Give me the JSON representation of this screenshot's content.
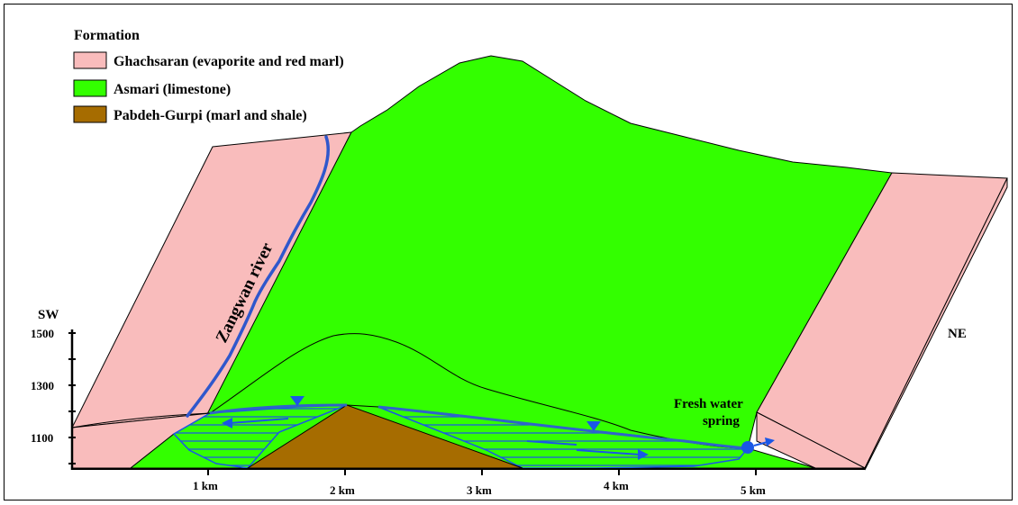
{
  "legend": {
    "title": "Formation",
    "items": [
      {
        "label": "Ghachsaran (evaporite and red marl)",
        "color": "#f9bcbc"
      },
      {
        "label": "Asmari (limestone)",
        "color": "#33ff00"
      },
      {
        "label": "Pabdeh-Gurpi (marl and shale)",
        "color": "#a66c00"
      }
    ]
  },
  "labels": {
    "sw": "SW",
    "ne": "NE",
    "river": "Zangwan river",
    "spring_line1": "Fresh water",
    "spring_line2": "spring"
  },
  "y_axis": {
    "ticks": [
      "1500",
      "1300",
      "1100"
    ]
  },
  "x_axis": {
    "ticks": [
      "1 km",
      "2 km",
      "3 km",
      "4 km",
      "5 km"
    ]
  },
  "colors": {
    "water": "#1a57e6",
    "water_table": "#2f64c9"
  }
}
